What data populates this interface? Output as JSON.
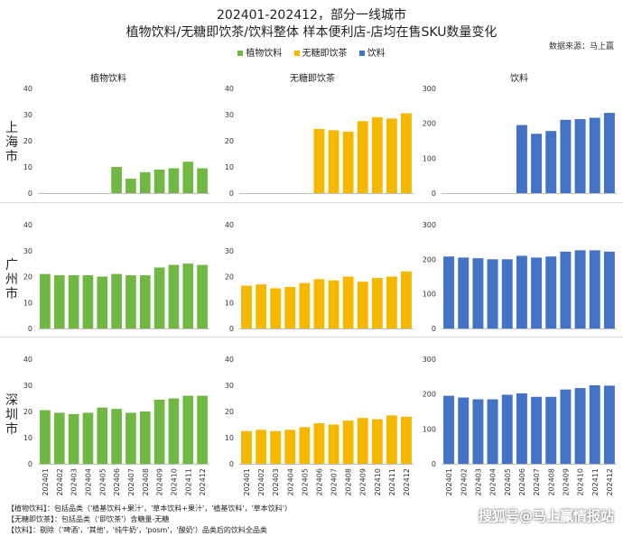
{
  "header": {
    "title_line1": "202401-202412，部分一线城市",
    "title_line2": "植物饮料/无糖即饮茶/饮料整体 样本便利店-店均在售SKU数量变化",
    "source": "数据来源：马上赢"
  },
  "legend": [
    {
      "label": "植物饮料",
      "color": "#70b843"
    },
    {
      "label": "无糖即饮茶",
      "color": "#f5b800"
    },
    {
      "label": "饮料",
      "color": "#4472c4"
    }
  ],
  "columns": [
    "植物饮料",
    "无糖即饮茶",
    "饮料"
  ],
  "cities": [
    "上海市",
    "广州市",
    "深圳市"
  ],
  "notes": [
    "【植物饮料】：包括品类（'植基饮料+果汁'，'草本饮料+果汁'，'植基饮料'，'草本饮料'）",
    "【无糖即饮茶】：包括品类（'即饮茶'）含糖量-无糖",
    "【饮料】：剔除（'啤酒'，'其他'，'纯牛奶'，'posm'，'酸奶'）品类后的饮料全品类"
  ],
  "watermark": "搜狐号@马上赢情报站",
  "chart_data": [
    {
      "type": "bar",
      "city": "上海市",
      "series_name": "植物饮料",
      "color": "#70b843",
      "categories": [
        "202401",
        "202402",
        "202403",
        "202404",
        "202405",
        "202406",
        "202407",
        "202408",
        "202409",
        "202410",
        "202411",
        "202412"
      ],
      "values": [
        null,
        null,
        null,
        null,
        null,
        10,
        5.5,
        8,
        9,
        9.5,
        12,
        9.5
      ],
      "ylim": [
        0,
        40
      ],
      "yticks": [
        0,
        10,
        20,
        30,
        40
      ]
    },
    {
      "type": "bar",
      "city": "上海市",
      "series_name": "无糖即饮茶",
      "color": "#f5b800",
      "categories": [
        "202401",
        "202402",
        "202403",
        "202404",
        "202405",
        "202406",
        "202407",
        "202408",
        "202409",
        "202410",
        "202411",
        "202412"
      ],
      "values": [
        null,
        null,
        null,
        null,
        null,
        24.5,
        24,
        23.5,
        27.5,
        29,
        28.5,
        30.5
      ],
      "ylim": [
        0,
        40
      ],
      "yticks": [
        0,
        10,
        20,
        30,
        40
      ]
    },
    {
      "type": "bar",
      "city": "上海市",
      "series_name": "饮料",
      "color": "#4472c4",
      "categories": [
        "202401",
        "202402",
        "202403",
        "202404",
        "202405",
        "202406",
        "202407",
        "202408",
        "202409",
        "202410",
        "202411",
        "202412"
      ],
      "values": [
        null,
        null,
        null,
        null,
        null,
        195,
        170,
        178,
        210,
        212,
        216,
        230
      ],
      "ylim": [
        0,
        300
      ],
      "yticks": [
        0,
        100,
        200,
        300
      ]
    },
    {
      "type": "bar",
      "city": "广州市",
      "series_name": "植物饮料",
      "color": "#70b843",
      "categories": [
        "202401",
        "202402",
        "202403",
        "202404",
        "202405",
        "202406",
        "202407",
        "202408",
        "202409",
        "202410",
        "202411",
        "202412"
      ],
      "values": [
        21,
        20.5,
        20.5,
        20.5,
        20,
        21,
        20.5,
        20.5,
        23.5,
        24.5,
        25,
        24.5
      ],
      "ylim": [
        0,
        40
      ],
      "yticks": [
        0,
        10,
        20,
        30,
        40
      ]
    },
    {
      "type": "bar",
      "city": "广州市",
      "series_name": "无糖即饮茶",
      "color": "#f5b800",
      "categories": [
        "202401",
        "202402",
        "202403",
        "202404",
        "202405",
        "202406",
        "202407",
        "202408",
        "202409",
        "202410",
        "202411",
        "202412"
      ],
      "values": [
        16.5,
        17,
        15.5,
        16,
        17.5,
        19,
        18.5,
        20,
        18,
        19.5,
        20,
        22
      ],
      "ylim": [
        0,
        40
      ],
      "yticks": [
        0,
        10,
        20,
        30,
        40
      ]
    },
    {
      "type": "bar",
      "city": "广州市",
      "series_name": "饮料",
      "color": "#4472c4",
      "categories": [
        "202401",
        "202402",
        "202403",
        "202404",
        "202405",
        "202406",
        "202407",
        "202408",
        "202409",
        "202410",
        "202411",
        "202412"
      ],
      "values": [
        208,
        205,
        203,
        200,
        200,
        210,
        205,
        208,
        222,
        226,
        226,
        222
      ],
      "ylim": [
        0,
        300
      ],
      "yticks": [
        0,
        100,
        200,
        300
      ]
    },
    {
      "type": "bar",
      "city": "深圳市",
      "series_name": "植物饮料",
      "color": "#70b843",
      "categories": [
        "202401",
        "202402",
        "202403",
        "202404",
        "202405",
        "202406",
        "202407",
        "202408",
        "202409",
        "202410",
        "202411",
        "202412"
      ],
      "values": [
        20.5,
        19.5,
        19,
        19.5,
        21.5,
        21,
        19.5,
        20,
        24.5,
        25,
        26,
        26
      ],
      "ylim": [
        0,
        40
      ],
      "yticks": [
        0,
        10,
        20,
        30,
        40
      ]
    },
    {
      "type": "bar",
      "city": "深圳市",
      "series_name": "无糖即饮茶",
      "color": "#f5b800",
      "categories": [
        "202401",
        "202402",
        "202403",
        "202404",
        "202405",
        "202406",
        "202407",
        "202408",
        "202409",
        "202410",
        "202411",
        "202412"
      ],
      "values": [
        12.5,
        13,
        12.5,
        13,
        14,
        15.5,
        15,
        16.5,
        17.5,
        17,
        18.5,
        18
      ],
      "ylim": [
        0,
        40
      ],
      "yticks": [
        0,
        10,
        20,
        30,
        40
      ]
    },
    {
      "type": "bar",
      "city": "深圳市",
      "series_name": "饮料",
      "color": "#4472c4",
      "categories": [
        "202401",
        "202402",
        "202403",
        "202404",
        "202405",
        "202406",
        "202407",
        "202408",
        "202409",
        "202410",
        "202411",
        "202412"
      ],
      "values": [
        195,
        190,
        185,
        185,
        198,
        202,
        192,
        192,
        213,
        217,
        225,
        224
      ],
      "ylim": [
        0,
        300
      ],
      "yticks": [
        0,
        100,
        200,
        300
      ]
    }
  ]
}
